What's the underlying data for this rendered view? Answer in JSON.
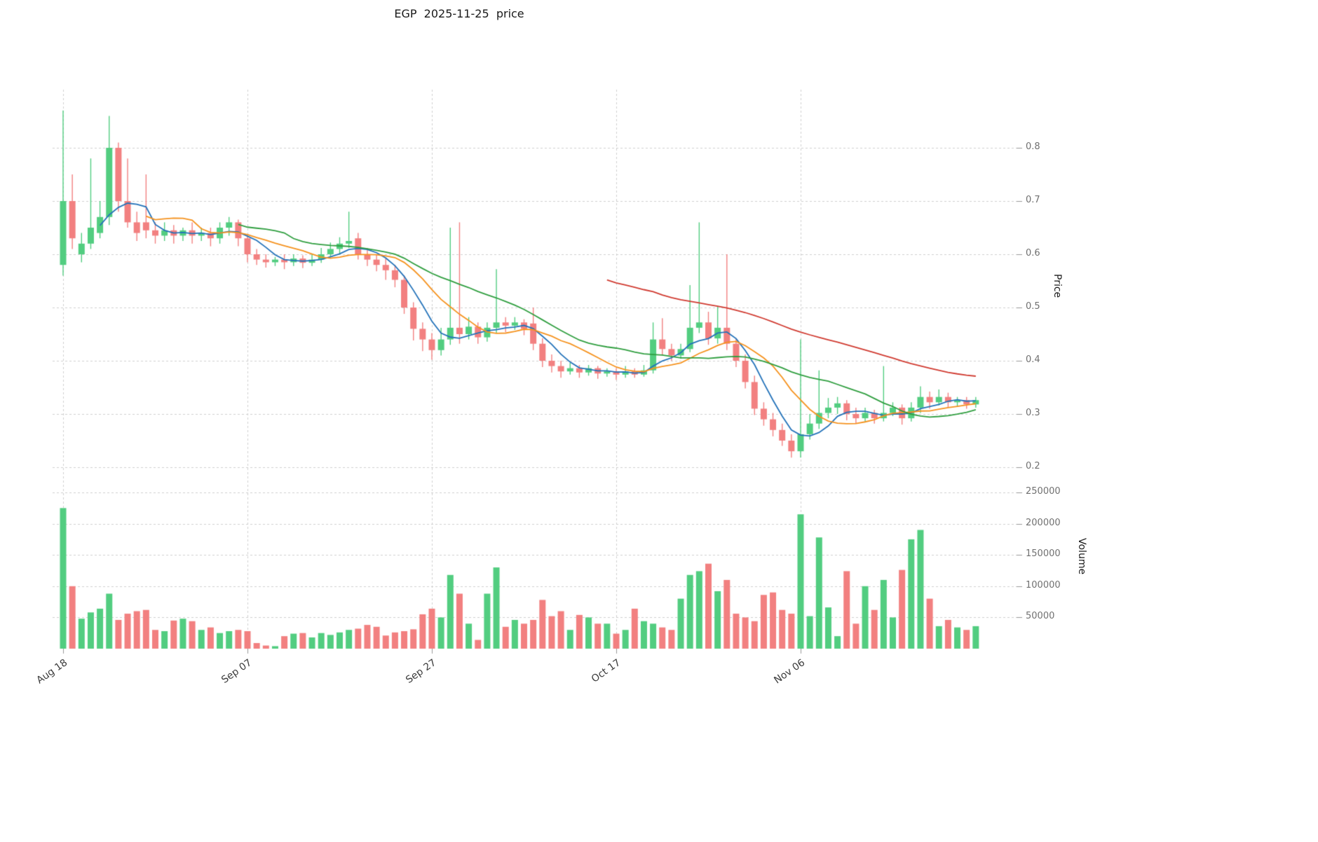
{
  "title": "EGP  2025-11-25  price",
  "axes": {
    "price_label": "Price",
    "volume_label": "Volume",
    "price_ticks": [
      0.2,
      0.3,
      0.4,
      0.5,
      0.6,
      0.7,
      0.8
    ],
    "volume_ticks": [
      50000,
      100000,
      150000,
      200000,
      250000
    ],
    "x_ticks": [
      {
        "label": "Aug 18",
        "day": 0
      },
      {
        "label": "Sep 07",
        "day": 20
      },
      {
        "label": "Sep 27",
        "day": 40
      },
      {
        "label": "Oct 17",
        "day": 60
      },
      {
        "label": "Nov 06",
        "day": 80
      }
    ]
  },
  "colors": {
    "up": "#52cd80",
    "down": "#f28080",
    "grid": "#cfcfcf",
    "tick": "#999999",
    "ma_short": "#2372b9",
    "ma_mid": "#f5921e",
    "ma_long": "#2f9e3f",
    "ma_longest": "#d03a30"
  },
  "chart_data": {
    "type": "candlestick+volume",
    "symbol": "EGP",
    "as_of_date": "2025-11-25",
    "start_date": "2025-08-18",
    "end_date": "2025-11-25",
    "frequency": "daily",
    "price_axis_range": [
      0.18,
      0.92
    ],
    "volume_axis_range": [
      0,
      250000
    ],
    "grid": true,
    "moving_averages": [
      {
        "window": 5,
        "color": "#2372b9"
      },
      {
        "window": 10,
        "color": "#f5921e"
      },
      {
        "window": 20,
        "color": "#2f9e3f"
      },
      {
        "window": 60,
        "color": "#d03a30"
      }
    ],
    "open": [
      0.58,
      0.7,
      0.6,
      0.62,
      0.64,
      0.67,
      0.8,
      0.7,
      0.66,
      0.66,
      0.645,
      0.635,
      0.645,
      0.635,
      0.645,
      0.635,
      0.64,
      0.63,
      0.65,
      0.66,
      0.63,
      0.6,
      0.59,
      0.585,
      0.59,
      0.585,
      0.592,
      0.584,
      0.59,
      0.6,
      0.61,
      0.62,
      0.63,
      0.6,
      0.59,
      0.58,
      0.57,
      0.552,
      0.5,
      0.46,
      0.44,
      0.42,
      0.44,
      0.462,
      0.45,
      0.464,
      0.444,
      0.462,
      0.472,
      0.466,
      0.472,
      0.47,
      0.432,
      0.4,
      0.39,
      0.38,
      0.386,
      0.378,
      0.386,
      0.376,
      0.38,
      0.374,
      0.38,
      0.374,
      0.382,
      0.44,
      0.422,
      0.41,
      0.422,
      0.462,
      0.472,
      0.442,
      0.462,
      0.432,
      0.4,
      0.36,
      0.31,
      0.29,
      0.27,
      0.25,
      0.23,
      0.262,
      0.282,
      0.302,
      0.312,
      0.32,
      0.3,
      0.292,
      0.302,
      0.292,
      0.302,
      0.312,
      0.292,
      0.312,
      0.332,
      0.322,
      0.332,
      0.322,
      0.326,
      0.318
    ],
    "high": [
      0.87,
      0.75,
      0.64,
      0.78,
      0.7,
      0.86,
      0.81,
      0.78,
      0.68,
      0.75,
      0.66,
      0.66,
      0.655,
      0.65,
      0.66,
      0.65,
      0.65,
      0.66,
      0.67,
      0.665,
      0.635,
      0.61,
      0.6,
      0.595,
      0.6,
      0.6,
      0.598,
      0.6,
      0.612,
      0.622,
      0.632,
      0.68,
      0.64,
      0.612,
      0.6,
      0.592,
      0.58,
      0.56,
      0.51,
      0.472,
      0.452,
      0.462,
      0.65,
      0.66,
      0.482,
      0.472,
      0.472,
      0.572,
      0.482,
      0.482,
      0.478,
      0.5,
      0.442,
      0.412,
      0.4,
      0.396,
      0.392,
      0.392,
      0.39,
      0.386,
      0.386,
      0.39,
      0.386,
      0.392,
      0.472,
      0.48,
      0.432,
      0.432,
      0.542,
      0.66,
      0.492,
      0.502,
      0.6,
      0.442,
      0.412,
      0.372,
      0.322,
      0.302,
      0.282,
      0.262,
      0.44,
      0.3,
      0.382,
      0.33,
      0.332,
      0.326,
      0.312,
      0.312,
      0.308,
      0.39,
      0.322,
      0.318,
      0.322,
      0.352,
      0.342,
      0.346,
      0.34,
      0.332,
      0.332,
      0.332
    ],
    "low": [
      0.56,
      0.61,
      0.585,
      0.61,
      0.63,
      0.655,
      0.68,
      0.65,
      0.625,
      0.63,
      0.62,
      0.625,
      0.62,
      0.625,
      0.62,
      0.625,
      0.615,
      0.62,
      0.635,
      0.615,
      0.585,
      0.58,
      0.575,
      0.578,
      0.572,
      0.578,
      0.574,
      0.578,
      0.584,
      0.594,
      0.6,
      0.612,
      0.59,
      0.578,
      0.568,
      0.552,
      0.538,
      0.488,
      0.438,
      0.418,
      0.402,
      0.41,
      0.43,
      0.432,
      0.44,
      0.432,
      0.436,
      0.452,
      0.454,
      0.458,
      0.448,
      0.42,
      0.388,
      0.378,
      0.368,
      0.374,
      0.368,
      0.372,
      0.366,
      0.37,
      0.364,
      0.368,
      0.368,
      0.37,
      0.376,
      0.41,
      0.4,
      0.404,
      0.416,
      0.452,
      0.43,
      0.432,
      0.42,
      0.388,
      0.348,
      0.298,
      0.278,
      0.258,
      0.24,
      0.218,
      0.218,
      0.252,
      0.272,
      0.292,
      0.3,
      0.288,
      0.282,
      0.286,
      0.282,
      0.286,
      0.296,
      0.28,
      0.286,
      0.302,
      0.31,
      0.316,
      0.312,
      0.314,
      0.31,
      0.312
    ],
    "close": [
      0.7,
      0.63,
      0.62,
      0.65,
      0.67,
      0.8,
      0.7,
      0.66,
      0.64,
      0.645,
      0.635,
      0.645,
      0.635,
      0.645,
      0.635,
      0.64,
      0.63,
      0.65,
      0.66,
      0.63,
      0.6,
      0.59,
      0.585,
      0.59,
      0.585,
      0.592,
      0.584,
      0.59,
      0.6,
      0.61,
      0.62,
      0.625,
      0.6,
      0.59,
      0.58,
      0.57,
      0.552,
      0.5,
      0.46,
      0.44,
      0.42,
      0.44,
      0.462,
      0.45,
      0.464,
      0.444,
      0.462,
      0.472,
      0.466,
      0.472,
      0.46,
      0.432,
      0.4,
      0.39,
      0.38,
      0.386,
      0.378,
      0.386,
      0.376,
      0.38,
      0.374,
      0.38,
      0.374,
      0.382,
      0.44,
      0.422,
      0.41,
      0.422,
      0.462,
      0.472,
      0.442,
      0.462,
      0.432,
      0.4,
      0.36,
      0.31,
      0.29,
      0.27,
      0.25,
      0.23,
      0.262,
      0.282,
      0.302,
      0.312,
      0.32,
      0.3,
      0.292,
      0.302,
      0.292,
      0.302,
      0.312,
      0.292,
      0.312,
      0.332,
      0.322,
      0.332,
      0.322,
      0.326,
      0.318,
      0.326
    ],
    "volume": [
      225000,
      100000,
      48000,
      58000,
      64000,
      88000,
      46000,
      56000,
      60000,
      62000,
      30000,
      28000,
      45000,
      48000,
      44000,
      30000,
      34000,
      25000,
      28000,
      30000,
      28000,
      9000,
      5000,
      4000,
      20000,
      24000,
      25000,
      18000,
      25000,
      22000,
      26000,
      30000,
      32000,
      38000,
      35000,
      21000,
      26000,
      28000,
      31000,
      55000,
      64000,
      50000,
      118000,
      88000,
      40000,
      14000,
      88000,
      130000,
      35000,
      46000,
      40000,
      46000,
      78000,
      52000,
      60000,
      30000,
      54000,
      50000,
      40000,
      40000,
      24000,
      30000,
      64000,
      44000,
      40000,
      34000,
      30000,
      80000,
      118000,
      124000,
      136000,
      92000,
      110000,
      56000,
      50000,
      44000,
      86000,
      90000,
      62000,
      56000,
      215000,
      52000,
      178000,
      66000,
      20000,
      124000,
      40000,
      100000,
      62000,
      110000,
      50000,
      126000,
      175000,
      190000,
      80000,
      36000,
      46000,
      34000,
      30000,
      36000
    ]
  }
}
